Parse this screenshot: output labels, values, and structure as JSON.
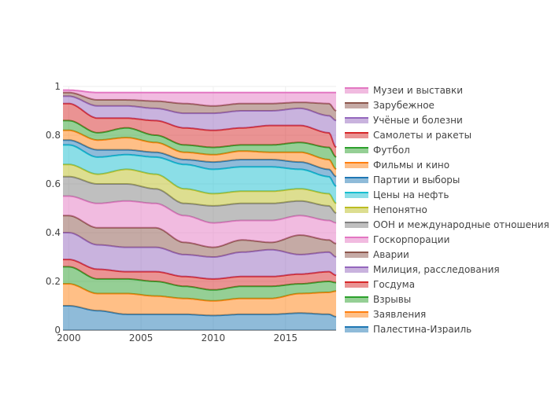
{
  "chart_data": {
    "type": "area",
    "stacked": true,
    "grid": true,
    "legend_placement": "right",
    "xlim": [
      1999.6,
      2018.5
    ],
    "ylim": [
      0,
      1
    ],
    "x_ticks": [
      "2000",
      "2005",
      "2010",
      "2015"
    ],
    "y_ticks": [
      "0",
      "0.2",
      "0.4",
      "0.6",
      "0.8",
      "1"
    ],
    "x": [
      1999.6,
      2000,
      2002,
      2004,
      2006,
      2008,
      2010,
      2012,
      2014,
      2016,
      2018,
      2018.5
    ],
    "series": [
      {
        "name": "Палестина-Израиль",
        "color": "#1f77b4",
        "values": [
          0.1,
          0.1,
          0.08,
          0.065,
          0.065,
          0.065,
          0.06,
          0.065,
          0.065,
          0.07,
          0.065,
          0.055
        ]
      },
      {
        "name": "Заявления",
        "color": "#ff7f0e",
        "values": [
          0.09,
          0.09,
          0.07,
          0.085,
          0.075,
          0.065,
          0.06,
          0.065,
          0.065,
          0.08,
          0.09,
          0.105
        ]
      },
      {
        "name": "Взрывы",
        "color": "#2ca02c",
        "values": [
          0.07,
          0.07,
          0.06,
          0.06,
          0.06,
          0.05,
          0.045,
          0.05,
          0.05,
          0.04,
          0.045,
          0.035
        ]
      },
      {
        "name": "Госдума",
        "color": "#d62728",
        "values": [
          0.03,
          0.03,
          0.04,
          0.03,
          0.04,
          0.04,
          0.045,
          0.04,
          0.04,
          0.04,
          0.04,
          0.03
        ]
      },
      {
        "name": "Милиция, расследования",
        "color": "#9467bd",
        "values": [
          0.11,
          0.11,
          0.1,
          0.1,
          0.1,
          0.09,
          0.09,
          0.1,
          0.11,
          0.08,
          0.08,
          0.075
        ]
      },
      {
        "name": "Аварии",
        "color": "#8c564b",
        "values": [
          0.07,
          0.07,
          0.07,
          0.08,
          0.08,
          0.05,
          0.04,
          0.05,
          0.03,
          0.08,
          0.05,
          0.055
        ]
      },
      {
        "name": "Госкорпорации",
        "color": "#e377c2",
        "values": [
          0.08,
          0.08,
          0.1,
          0.11,
          0.1,
          0.11,
          0.1,
          0.08,
          0.09,
          0.08,
          0.08,
          0.085
        ]
      },
      {
        "name": "ООН и международные отношения",
        "color": "#7f7f7f",
        "values": [
          0.08,
          0.08,
          0.08,
          0.07,
          0.06,
          0.05,
          0.07,
          0.07,
          0.07,
          0.06,
          0.06,
          0.04
        ]
      },
      {
        "name": "Непонятно",
        "color": "#bcbd22",
        "values": [
          0.05,
          0.05,
          0.04,
          0.06,
          0.06,
          0.06,
          0.05,
          0.05,
          0.05,
          0.05,
          0.05,
          0.04
        ]
      },
      {
        "name": "Цены на нефть",
        "color": "#17becf",
        "values": [
          0.08,
          0.08,
          0.07,
          0.06,
          0.07,
          0.1,
          0.1,
          0.1,
          0.1,
          0.08,
          0.07,
          0.07
        ]
      },
      {
        "name": "Партии и выборы",
        "color": "#1f77b4",
        "values": [
          0.02,
          0.02,
          0.03,
          0.02,
          0.02,
          0.02,
          0.03,
          0.03,
          0.03,
          0.03,
          0.03,
          0.04
        ]
      },
      {
        "name": "Фильмы и кино",
        "color": "#ff7f0e",
        "values": [
          0.04,
          0.04,
          0.04,
          0.05,
          0.04,
          0.03,
          0.03,
          0.035,
          0.03,
          0.04,
          0.04,
          0.03
        ]
      },
      {
        "name": "Футбол",
        "color": "#2ca02c",
        "values": [
          0.04,
          0.04,
          0.03,
          0.04,
          0.03,
          0.03,
          0.03,
          0.025,
          0.03,
          0.04,
          0.05,
          0.05
        ]
      },
      {
        "name": "Самолеты и ракеты",
        "color": "#d62728",
        "values": [
          0.07,
          0.07,
          0.06,
          0.04,
          0.06,
          0.07,
          0.07,
          0.07,
          0.08,
          0.07,
          0.06,
          0.04
        ]
      },
      {
        "name": "Учёные и болезни",
        "color": "#9467bd",
        "values": [
          0.03,
          0.03,
          0.05,
          0.05,
          0.05,
          0.06,
          0.07,
          0.07,
          0.06,
          0.07,
          0.07,
          0.11
        ]
      },
      {
        "name": "Зарубежное",
        "color": "#8c564b",
        "values": [
          0.015,
          0.015,
          0.025,
          0.025,
          0.03,
          0.04,
          0.03,
          0.03,
          0.03,
          0.025,
          0.05,
          0.04
        ]
      },
      {
        "name": "Музеи и выставки",
        "color": "#e377c2",
        "values": [
          0.01,
          0.01,
          0.03,
          0.03,
          0.035,
          0.045,
          0.055,
          0.045,
          0.045,
          0.04,
          0.045,
          0.075
        ]
      }
    ]
  }
}
